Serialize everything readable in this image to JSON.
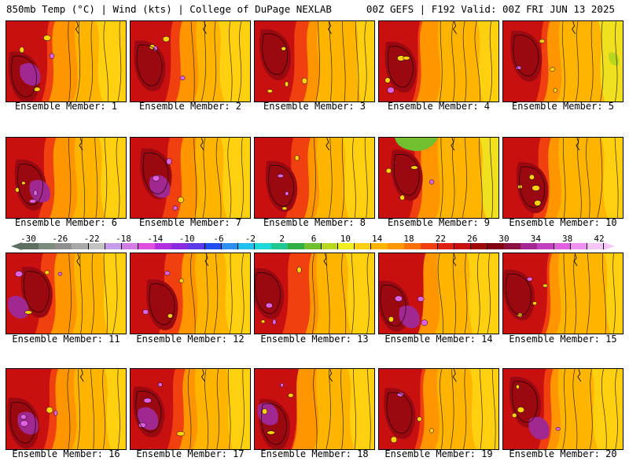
{
  "header": {
    "left": "850mb Temp (°C) | Wind (kts) | College of DuPage NEXLAB",
    "right": "00Z GEFS | F192 Valid: 00Z FRI JUN 13 2025"
  },
  "colorbar": {
    "ticks": [
      "-30",
      "-26",
      "-22",
      "-18",
      "-14",
      "-10",
      "-6",
      "-2",
      "2",
      "6",
      "10",
      "14",
      "18",
      "22",
      "26",
      "30",
      "34",
      "38",
      "42"
    ],
    "colors": [
      "#5f6f5f",
      "#7c8c7c",
      "#8f8f8f",
      "#a8a8a8",
      "#c3c3c3",
      "#c79be8",
      "#d47ce6",
      "#e050e0",
      "#b030e0",
      "#8a2be2",
      "#5a3ae8",
      "#1f4ff0",
      "#2f8ff0",
      "#20c0f0",
      "#20d8d8",
      "#20c890",
      "#30b040",
      "#70c030",
      "#b8d820",
      "#f0f020",
      "#ffd010",
      "#ffb400",
      "#ff9600",
      "#ff7000",
      "#f04010",
      "#e02010",
      "#c81010",
      "#a00808",
      "#800010",
      "#8a1040",
      "#a02890",
      "#c040c0",
      "#e060e0",
      "#f090f0",
      "#f6c6f6"
    ]
  },
  "panels": [
    {
      "label": "Ensemble Member: 1",
      "variant": 0
    },
    {
      "label": "Ensemble Member: 2",
      "variant": 1
    },
    {
      "label": "Ensemble Member: 3",
      "variant": 2
    },
    {
      "label": "Ensemble Member: 4",
      "variant": 3
    },
    {
      "label": "Ensemble Member: 5",
      "variant": 4
    },
    {
      "label": "Ensemble Member: 6",
      "variant": 5
    },
    {
      "label": "Ensemble Member: 7",
      "variant": 6
    },
    {
      "label": "Ensemble Member: 8",
      "variant": 7
    },
    {
      "label": "Ensemble Member: 9",
      "variant": 8
    },
    {
      "label": "Ensemble Member: 10",
      "variant": 9
    },
    {
      "label": "Ensemble Member: 11",
      "variant": 10
    },
    {
      "label": "Ensemble Member: 12",
      "variant": 11
    },
    {
      "label": "Ensemble Member: 13",
      "variant": 12
    },
    {
      "label": "Ensemble Member: 14",
      "variant": 13
    },
    {
      "label": "Ensemble Member: 15",
      "variant": 14
    },
    {
      "label": "Ensemble Member: 16",
      "variant": 15
    },
    {
      "label": "Ensemble Member: 17",
      "variant": 16
    },
    {
      "label": "Ensemble Member: 18",
      "variant": 17
    },
    {
      "label": "Ensemble Member: 19",
      "variant": 18
    },
    {
      "label": "Ensemble Member: 20",
      "variant": 19
    }
  ]
}
